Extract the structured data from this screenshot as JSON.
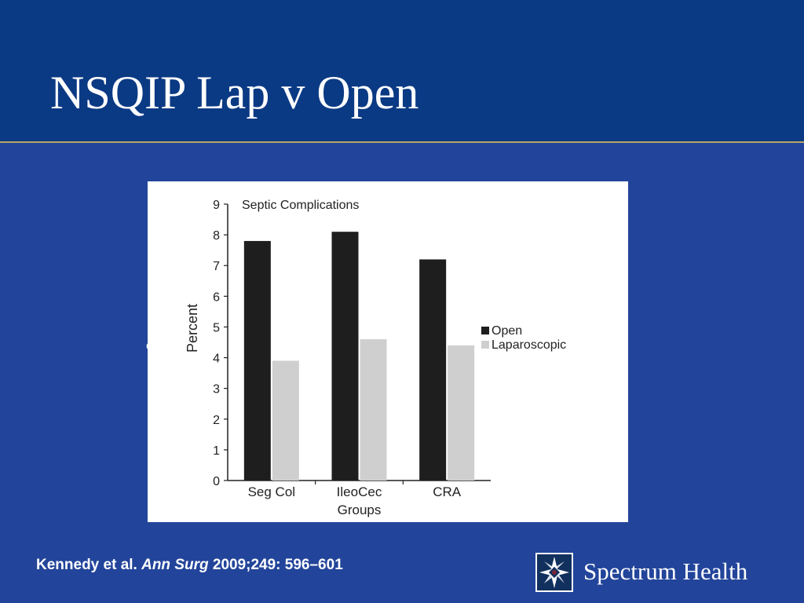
{
  "slide": {
    "title": "NSQIP Lap v Open",
    "stray_char": "c",
    "citation": {
      "authors": "Kennedy et al.",
      "journal": "Ann Surg",
      "ref": "2009;249: 596–601"
    },
    "brand": {
      "name": "Spectrum Health",
      "logo_icon": "spectrum-star-logo-icon"
    },
    "colors": {
      "background": "#22449a",
      "header": "#0b3a84",
      "rule": "#b9a466"
    }
  },
  "chart_data": {
    "type": "bar",
    "title": "Septic Complications",
    "xlabel": "Groups",
    "ylabel": "Percent",
    "categories": [
      "Seg Col",
      "IleoCec",
      "CRA"
    ],
    "series": [
      {
        "name": "Open",
        "values": [
          7.8,
          8.1,
          7.2
        ],
        "color": "#1e1e1e"
      },
      {
        "name": "Laparoscopic",
        "values": [
          3.9,
          4.6,
          4.4
        ],
        "color": "#cfcfcf"
      }
    ],
    "ylim": [
      0,
      9
    ],
    "yticks": [
      0,
      1,
      2,
      3,
      4,
      5,
      6,
      7,
      8,
      9
    ],
    "legend": "right",
    "grid": false
  }
}
